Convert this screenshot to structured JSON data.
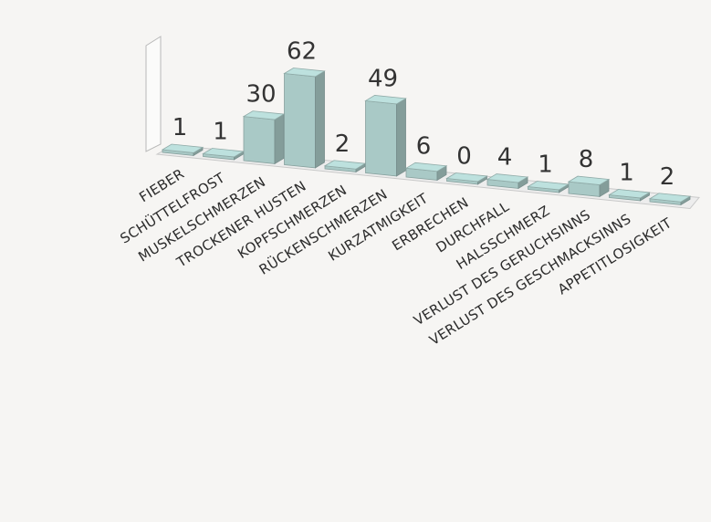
{
  "chart_data": {
    "type": "bar",
    "style": "3d",
    "categories": [
      "FIEBER",
      "SCHÜTTELFROST",
      "MUSKELSCHMERZEN",
      "TROCKENER HUSTEN",
      "KOPFSCHMERZEN",
      "RÜCKENSCHMERZEN",
      "KURZATMIGKEIT",
      "ERBRECHEN",
      "DURCHFALL",
      "HALSSCHMERZ",
      "VERLUST DES GERUCHSINNS",
      "VERLUST DES GESCHMACKSINNS",
      "APPETITLOSIGKEIT"
    ],
    "values": [
      1,
      1,
      30,
      62,
      2,
      49,
      6,
      0,
      4,
      1,
      8,
      1,
      2
    ],
    "value_labels": [
      "1",
      "1",
      "30",
      "62",
      "2",
      "49",
      "6",
      "0",
      "4",
      "1",
      "8",
      "1",
      "2"
    ],
    "ylim": [
      0,
      62
    ],
    "grid": false,
    "bar_color": "#a9c9c6"
  }
}
